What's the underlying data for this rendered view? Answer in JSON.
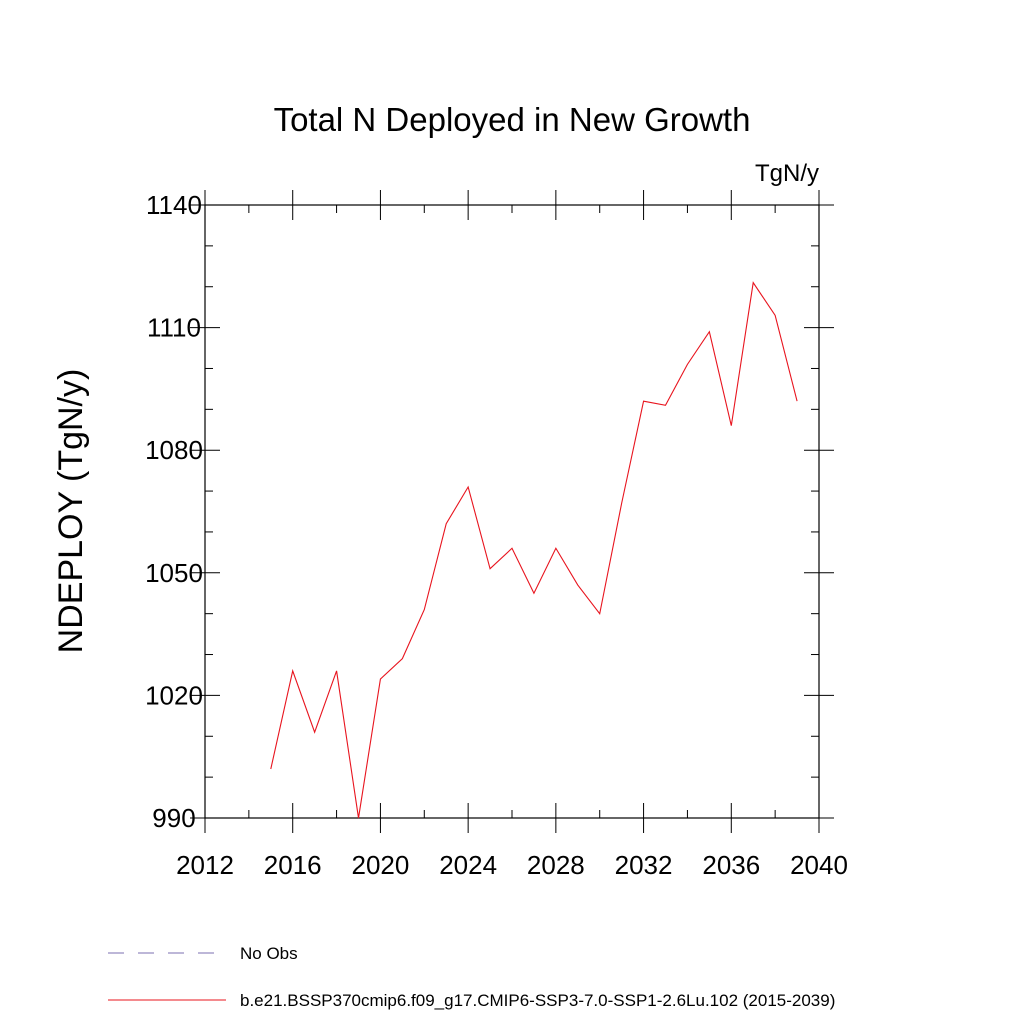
{
  "chart_data": {
    "type": "line",
    "title": "Total N Deployed in New Growth",
    "units_label": "TgN/y",
    "ylabel": "NDEPLOY  (TgN/y)",
    "xlabel": "",
    "xlim": [
      2012,
      2040
    ],
    "ylim": [
      990,
      1140
    ],
    "x_ticks": [
      2012,
      2016,
      2020,
      2024,
      2028,
      2032,
      2036,
      2040
    ],
    "y_ticks": [
      990,
      1020,
      1050,
      1080,
      1110,
      1140
    ],
    "x_minor_step": 2,
    "y_minor_step": 10,
    "grid": false,
    "series": [
      {
        "name": "b.e21.BSSP370cmip6.f09_g17.CMIP6-SSP3-7.0-SSP1-2.6Lu.102 (2015-2039)",
        "color": "#e8141e",
        "x": [
          2015,
          2016,
          2017,
          2018,
          2019,
          2020,
          2021,
          2022,
          2023,
          2024,
          2025,
          2026,
          2027,
          2028,
          2029,
          2030,
          2031,
          2032,
          2033,
          2034,
          2035,
          2036,
          2037,
          2038,
          2039
        ],
        "y": [
          1002,
          1026,
          1011,
          1026,
          990,
          1024,
          1029,
          1041,
          1062,
          1071,
          1051,
          1056,
          1045,
          1056,
          1047,
          1040,
          1067,
          1092,
          1091,
          1101,
          1109,
          1086,
          1121,
          1113,
          1092
        ]
      }
    ]
  },
  "legend": [
    {
      "label": "No Obs",
      "color": "#7b6fb0",
      "dash": "dashed"
    },
    {
      "label": "b.e21.BSSP370cmip6.f09_g17.CMIP6-SSP3-7.0-SSP1-2.6Lu.102 (2015-2039)",
      "color": "#e8141e",
      "dash": "solid"
    }
  ]
}
